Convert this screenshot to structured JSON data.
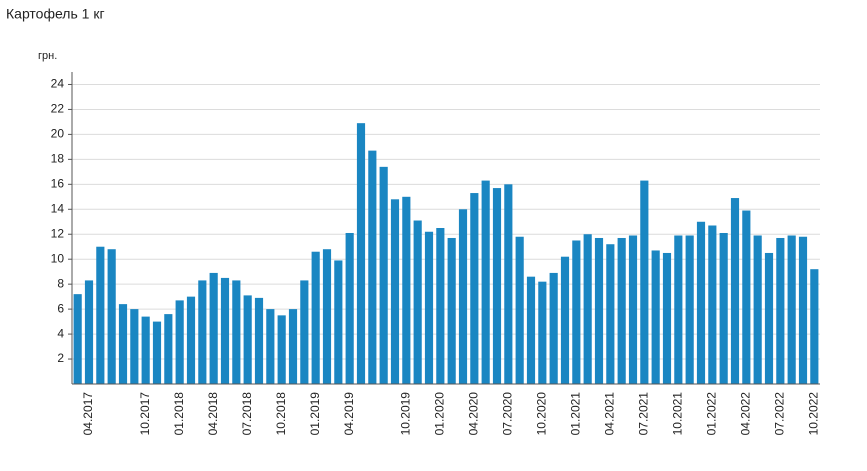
{
  "chart_data": {
    "type": "bar",
    "title": "Картофель 1 кг",
    "y_label": "грн.",
    "categories": [
      null,
      "04.2017",
      null,
      null,
      null,
      null,
      "10.2017",
      null,
      null,
      "01.2018",
      null,
      null,
      "04.2018",
      null,
      null,
      "07.2018",
      null,
      null,
      "10.2018",
      null,
      null,
      "01.2019",
      null,
      null,
      "04.2019",
      null,
      null,
      null,
      null,
      "10.2019",
      null,
      null,
      "01.2020",
      null,
      null,
      "04.2020",
      null,
      null,
      "07.2020",
      null,
      null,
      "10.2020",
      null,
      null,
      "01.2021",
      null,
      null,
      "04.2021",
      null,
      null,
      "07.2021",
      null,
      null,
      "10.2021",
      null,
      null,
      "01.2022",
      null,
      null,
      "04.2022",
      null,
      null,
      "07.2022",
      null,
      null,
      "10.2022"
    ],
    "values": [
      7.2,
      8.3,
      11.0,
      10.8,
      6.4,
      6.0,
      5.4,
      5.0,
      5.6,
      6.7,
      7.0,
      8.3,
      8.9,
      8.5,
      8.3,
      7.1,
      6.9,
      6.0,
      5.5,
      6.0,
      8.3,
      10.6,
      10.8,
      9.9,
      12.1,
      20.9,
      18.7,
      17.4,
      14.8,
      15.0,
      13.1,
      12.2,
      12.5,
      11.7,
      14.0,
      15.3,
      16.3,
      15.7,
      16.0,
      11.8,
      8.6,
      8.2,
      8.9,
      10.2,
      11.5,
      12.0,
      11.7,
      11.2,
      11.7,
      11.9,
      16.3,
      10.7,
      10.5,
      11.9,
      11.9,
      13.0,
      12.7,
      12.1,
      14.9,
      13.9,
      11.9,
      10.5,
      11.7,
      11.9,
      11.8,
      9.2
    ],
    "color": "#1a86c2",
    "ylim": [
      0,
      25
    ],
    "yticks": [
      2,
      4,
      6,
      8,
      10,
      12,
      14,
      16,
      18,
      20,
      22,
      24
    ],
    "grid": true
  }
}
